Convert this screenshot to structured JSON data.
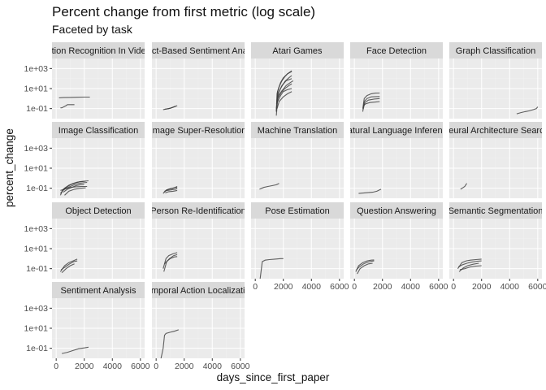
{
  "chart_data": {
    "type": "line",
    "title": "Percent change from first metric (log scale)",
    "subtitle": "Faceted by task",
    "xlabel": "days_since_first_paper",
    "ylabel": "percent_change",
    "xlim": [
      -300,
      6300
    ],
    "ylim_log10": [
      -2,
      4
    ],
    "x_ticks": [
      0,
      2000,
      4000,
      6000
    ],
    "x_tick_labels": [
      "0",
      "2000",
      "4000",
      "6000"
    ],
    "y_ticks": [
      0.1,
      10,
      1000
    ],
    "y_tick_labels": [
      "1e-01",
      "1e+01",
      "1e+03"
    ],
    "facet_columns": 5,
    "grid": true,
    "line_color": "#3a3a3a",
    "panel_background": "#ebebeb",
    "strip_background": "#d9d9d9",
    "facets": [
      {
        "task": "Action Recognition In Videos",
        "series": [
          {
            "x": [
              200,
              500,
              1000,
              1500,
              2000,
              2400
            ],
            "y": [
              1.2,
              1.25,
              1.3,
              1.35,
              1.4,
              1.4
            ]
          },
          {
            "x": [
              300,
              400,
              700,
              800,
              1300
            ],
            "y": [
              0.12,
              0.12,
              0.2,
              0.25,
              0.25
            ]
          }
        ]
      },
      {
        "task": "Aspect-Based Sentiment Analysis",
        "series": [
          {
            "x": [
              500,
              700,
              900,
              1100,
              1300,
              1500
            ],
            "y": [
              0.08,
              0.09,
              0.1,
              0.12,
              0.15,
              0.2
            ]
          },
          {
            "x": [
              600,
              800,
              1000,
              1200,
              1400
            ],
            "y": [
              0.085,
              0.095,
              0.11,
              0.14,
              0.18
            ]
          }
        ]
      },
      {
        "task": "Atari Games",
        "series": [
          {
            "x": [
              1500,
              1550,
              1700,
              1900,
              2100,
              2300,
              2600
            ],
            "y": [
              0.05,
              3,
              15,
              60,
              150,
              300,
              600
            ]
          },
          {
            "x": [
              1500,
              1580,
              1800,
              2000,
              2300,
              2600
            ],
            "y": [
              0.05,
              5,
              40,
              120,
              300,
              500
            ]
          },
          {
            "x": [
              1520,
              1600,
              1800,
              2100,
              2400,
              2600
            ],
            "y": [
              0.3,
              3,
              10,
              50,
              120,
              200
            ]
          },
          {
            "x": [
              1500,
              1650,
              1900,
              2200,
              2500,
              2700
            ],
            "y": [
              0.1,
              2,
              6,
              20,
              40,
              60
            ]
          },
          {
            "x": [
              1550,
              1700,
              1900,
              2200,
              2600
            ],
            "y": [
              1,
              5,
              20,
              60,
              100
            ]
          },
          {
            "x": [
              1500,
              1600,
              1850,
              2100,
              2400,
              2600
            ],
            "y": [
              0.02,
              1,
              4,
              10,
              20,
              30
            ]
          },
          {
            "x": [
              1600,
              1800,
              2000,
              2300,
              2600
            ],
            "y": [
              0.5,
              2,
              5,
              8,
              10
            ]
          },
          {
            "x": [
              1550,
              1700,
              2000,
              2300,
              2600
            ],
            "y": [
              0.1,
              0.5,
              1.5,
              3,
              5
            ]
          }
        ]
      },
      {
        "task": "Face Detection",
        "series": [
          {
            "x": [
              600,
              700,
              900,
              1200,
              1500,
              1800
            ],
            "y": [
              0.1,
              1,
              2,
              3,
              3.5,
              3.6
            ]
          },
          {
            "x": [
              600,
              700,
              900,
              1200,
              1800
            ],
            "y": [
              0.05,
              0.5,
              1,
              1.5,
              1.6
            ]
          },
          {
            "x": [
              620,
              750,
              1000,
              1400,
              1800
            ],
            "y": [
              0.08,
              0.4,
              0.7,
              0.9,
              1.0
            ]
          },
          {
            "x": [
              650,
              800,
              1100,
              1500,
              1800
            ],
            "y": [
              0.2,
              0.3,
              0.4,
              0.45,
              0.5
            ]
          }
        ]
      },
      {
        "task": "Graph Classification",
        "series": [
          {
            "x": [
              4500,
              4800,
              5100,
              5400,
              5700,
              5900,
              6000
            ],
            "y": [
              0.03,
              0.04,
              0.05,
              0.06,
              0.08,
              0.1,
              0.15
            ]
          }
        ]
      },
      {
        "task": "Image Classification",
        "series": [
          {
            "x": [
              300,
              500,
              800,
              1100,
              1400,
              1700,
              2000,
              2300
            ],
            "y": [
              0.02,
              0.08,
              0.15,
              0.25,
              0.35,
              0.45,
              0.5,
              0.55
            ]
          },
          {
            "x": [
              300,
              600,
              900,
              1200,
              1500,
              1800,
              2100
            ],
            "y": [
              0.03,
              0.1,
              0.2,
              0.3,
              0.4,
              0.45,
              0.5
            ]
          },
          {
            "x": [
              400,
              700,
              1000,
              1300,
              1600,
              1900,
              2200
            ],
            "y": [
              0.05,
              0.1,
              0.15,
              0.22,
              0.3,
              0.35,
              0.38
            ]
          },
          {
            "x": [
              500,
              800,
              1100,
              1400,
              1700,
              2000
            ],
            "y": [
              0.04,
              0.08,
              0.12,
              0.18,
              0.22,
              0.25
            ]
          },
          {
            "x": [
              300,
              700,
              1000,
              1400,
              1800,
              2200
            ],
            "y": [
              0.06,
              0.09,
              0.12,
              0.14,
              0.15,
              0.15
            ]
          },
          {
            "x": [
              600,
              900,
              1300,
              1700,
              2100
            ],
            "y": [
              0.02,
              0.05,
              0.08,
              0.1,
              0.11
            ]
          }
        ]
      },
      {
        "task": "Image Super-Resolution",
        "series": [
          {
            "x": [
              500,
              700,
              900,
              1200,
              1500
            ],
            "y": [
              0.03,
              0.06,
              0.08,
              0.1,
              0.15
            ]
          },
          {
            "x": [
              550,
              750,
              1000,
              1300,
              1500
            ],
            "y": [
              0.04,
              0.07,
              0.09,
              0.11,
              0.12
            ]
          },
          {
            "x": [
              600,
              800,
              1100,
              1400,
              1500
            ],
            "y": [
              0.05,
              0.06,
              0.07,
              0.08,
              0.1
            ]
          },
          {
            "x": [
              650,
              900,
              1200,
              1500
            ],
            "y": [
              0.035,
              0.045,
              0.05,
              0.06
            ]
          }
        ]
      },
      {
        "task": "Machine Translation",
        "series": [
          {
            "x": [
              300,
              600,
              900,
              1200,
              1500,
              1700
            ],
            "y": [
              0.08,
              0.12,
              0.15,
              0.18,
              0.22,
              0.3
            ]
          }
        ]
      },
      {
        "task": "Natural Language Inference",
        "series": [
          {
            "x": [
              300,
              800,
              1300,
              1600,
              1800,
              1900
            ],
            "y": [
              0.03,
              0.035,
              0.04,
              0.05,
              0.07,
              0.08
            ]
          }
        ]
      },
      {
        "task": "Neural Architecture Search",
        "series": [
          {
            "x": [
              500,
              700,
              800,
              900,
              950
            ],
            "y": [
              0.08,
              0.12,
              0.15,
              0.25,
              0.3
            ]
          }
        ]
      },
      {
        "task": "Object Detection",
        "series": [
          {
            "x": [
              300,
              600,
              900,
              1200,
              1500
            ],
            "y": [
              0.05,
              0.2,
              0.4,
              0.6,
              0.9
            ]
          },
          {
            "x": [
              350,
              650,
              950,
              1250,
              1500
            ],
            "y": [
              0.08,
              0.15,
              0.3,
              0.5,
              0.6
            ]
          },
          {
            "x": [
              400,
              700,
              1000,
              1300
            ],
            "y": [
              0.04,
              0.1,
              0.2,
              0.3
            ]
          }
        ]
      },
      {
        "task": "Person Re-Identification",
        "series": [
          {
            "x": [
              500,
              700,
              900,
              1200,
              1500
            ],
            "y": [
              0.1,
              1,
              2,
              3,
              4
            ]
          },
          {
            "x": [
              550,
              750,
              950,
              1250,
              1500
            ],
            "y": [
              0.05,
              0.5,
              1,
              2,
              2.5
            ]
          },
          {
            "x": [
              600,
              800,
              1000,
              1300,
              1500
            ],
            "y": [
              0.3,
              0.6,
              1,
              1.5,
              1.6
            ]
          }
        ]
      },
      {
        "task": "Pose Estimation",
        "series": [
          {
            "x": [
              300,
              500,
              700,
              1000,
              1400,
              1800,
              2000
            ],
            "y": [
              0.003,
              0.5,
              0.7,
              0.8,
              0.9,
              1,
              1
            ]
          }
        ]
      },
      {
        "task": "Question Answering",
        "series": [
          {
            "x": [
              100,
              300,
              600,
              900,
              1200,
              1400
            ],
            "y": [
              0.05,
              0.2,
              0.4,
              0.6,
              0.7,
              0.75
            ]
          },
          {
            "x": [
              150,
              350,
              650,
              950,
              1250,
              1400
            ],
            "y": [
              0.08,
              0.15,
              0.3,
              0.45,
              0.55,
              0.6
            ]
          },
          {
            "x": [
              200,
              400,
              700,
              1000,
              1300
            ],
            "y": [
              0.03,
              0.1,
              0.2,
              0.3,
              0.35
            ]
          }
        ]
      },
      {
        "task": "Semantic Segmentation",
        "series": [
          {
            "x": [
              300,
              600,
              900,
              1200,
              1600,
              2000
            ],
            "y": [
              0.1,
              0.4,
              0.6,
              0.7,
              0.8,
              0.9
            ]
          },
          {
            "x": [
              350,
              650,
              950,
              1300,
              1700,
              2000
            ],
            "y": [
              0.15,
              0.25,
              0.35,
              0.45,
              0.55,
              0.6
            ]
          },
          {
            "x": [
              400,
              700,
              1000,
              1400,
              1800
            ],
            "y": [
              0.05,
              0.12,
              0.2,
              0.28,
              0.35
            ]
          },
          {
            "x": [
              450,
              800,
              1200,
              1600,
              2000
            ],
            "y": [
              0.08,
              0.1,
              0.15,
              0.18,
              0.2
            ]
          }
        ]
      },
      {
        "task": "Sentiment Analysis",
        "series": [
          {
            "x": [
              400,
              800,
              1200,
              1600,
              2000,
              2300
            ],
            "y": [
              0.03,
              0.04,
              0.06,
              0.09,
              0.11,
              0.13
            ]
          }
        ]
      },
      {
        "task": "Temporal Action Localization",
        "series": [
          {
            "x": [
              300,
              500,
              600,
              700,
              1000,
              1300,
              1600
            ],
            "y": [
              0.005,
              0.1,
              2,
              3,
              4,
              5,
              7
            ]
          }
        ]
      }
    ]
  }
}
